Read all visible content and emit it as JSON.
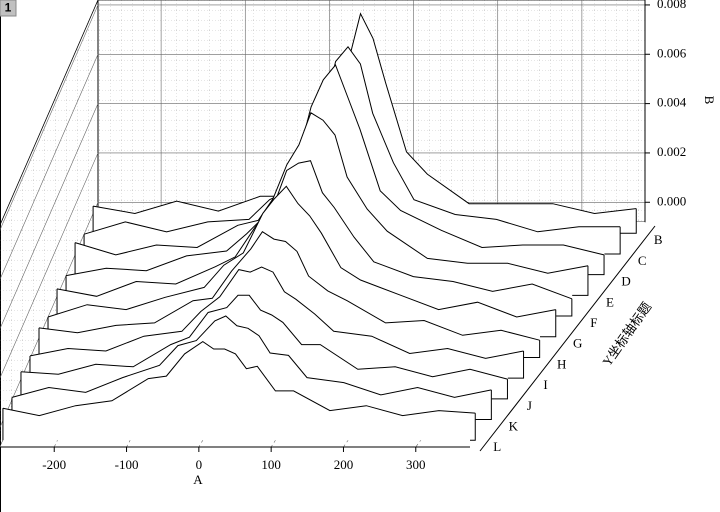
{
  "chart_data": {
    "type": "waterfall",
    "layer_label": "1",
    "xlabel": "A",
    "ylabel": "B",
    "zlabel": "Y坐标轴标题",
    "x": [
      -275,
      -225,
      -175,
      -125,
      -75,
      -50,
      -25,
      0,
      15,
      30,
      45,
      60,
      75,
      100,
      125,
      175,
      225,
      275,
      325,
      375
    ],
    "xlim": [
      -275,
      375
    ],
    "xticks": [
      -200,
      -100,
      0,
      100,
      200,
      300
    ],
    "ylim": [
      -0.0008,
      0.0082
    ],
    "yticks": [
      {
        "value": 0,
        "label": "0.000"
      },
      0.002,
      0.004,
      0.006,
      0.008
    ],
    "grid": true,
    "series": [
      {
        "name": "B",
        "color": "#000000",
        "values": [
          0.0003,
          0,
          0.0005,
          0.0001,
          0.0007,
          0.0007,
          0.0017,
          0.0026,
          0.0042,
          0.0061,
          0.0081,
          0.0071,
          0.0053,
          0.0025,
          0.0016,
          0.0004,
          0.0004,
          0.0004,
          0,
          0.0002
        ]
      },
      {
        "name": "C",
        "color": "#000000",
        "values": [
          0,
          0.0005,
          0.0001,
          0.0005,
          0.0006,
          0.0014,
          0.0018,
          0.0035,
          0.0049,
          0.007,
          0.0076,
          0.0069,
          0.0049,
          0.0029,
          0.0014,
          0.0008,
          0.0006,
          0.0001,
          0.0003,
          0.0003
        ]
      },
      {
        "name": "D",
        "color": "#000000",
        "values": [
          0.0005,
          0,
          0.0004,
          0.0003,
          0.0012,
          0.0014,
          0.0026,
          0.0041,
          0.006,
          0.0071,
          0.0077,
          0.0064,
          0.0051,
          0.0026,
          0.0018,
          0.001,
          0.0003,
          0.0004,
          0.0004,
          0
        ]
      },
      {
        "name": "E",
        "color": "#000000",
        "values": [
          0,
          0.0003,
          0.0002,
          0.0008,
          0.001,
          0.0017,
          0.0025,
          0.0045,
          0.0053,
          0.0066,
          0.0063,
          0.0057,
          0.004,
          0.0027,
          0.0018,
          0.0007,
          0.0005,
          0.0005,
          0.0001,
          0.0004
        ]
      },
      {
        "name": "F",
        "color": "#000000",
        "values": [
          0.0003,
          0,
          0.0006,
          0.0005,
          0.0012,
          0.0016,
          0.0028,
          0.0038,
          0.0051,
          0.0054,
          0.0055,
          0.0042,
          0.0036,
          0.0024,
          0.0014,
          0.0008,
          0.0006,
          0.0002,
          0.0005,
          -0.0001
        ]
      },
      {
        "name": "G",
        "color": "#000000",
        "values": [
          0,
          0.0005,
          0.0003,
          0.0008,
          0.0012,
          0.0021,
          0.0026,
          0.0042,
          0.0048,
          0.0053,
          0.0046,
          0.0041,
          0.0034,
          0.002,
          0.0015,
          0.0009,
          0.0003,
          0.0006,
          0,
          0.0003
        ]
      },
      {
        "name": "H",
        "color": "#000000",
        "values": [
          0.0004,
          0.0002,
          0.0005,
          0.0006,
          0.0015,
          0.0016,
          0.0027,
          0.0036,
          0.0043,
          0.004,
          0.0039,
          0.0035,
          0.0025,
          0.0019,
          0.0015,
          0.0006,
          0.0007,
          0.0001,
          0.0003,
          -0.0001
        ]
      },
      {
        "name": "I",
        "color": "#000000",
        "values": [
          0.0001,
          0.0004,
          0.0003,
          0.0009,
          0.0011,
          0.0019,
          0.0025,
          0.0036,
          0.0035,
          0.0037,
          0.0035,
          0.0027,
          0.0024,
          0.0018,
          0.0011,
          0.0009,
          0.0002,
          0.0004,
          0,
          0.0003
        ]
      },
      {
        "name": "J",
        "color": "#000000",
        "values": [
          0.0003,
          0.0002,
          0.0006,
          0.0005,
          0.0014,
          0.0017,
          0.0027,
          0.0029,
          0.0034,
          0.0034,
          0.0028,
          0.0026,
          0.0023,
          0.0014,
          0.0014,
          0.0004,
          0.0005,
          0.0001,
          0.0004,
          0
        ]
      },
      {
        "name": "K",
        "color": "#000000",
        "values": [
          0.0001,
          0.0005,
          0.0003,
          0.0009,
          0.0014,
          0.0022,
          0.0024,
          0.0032,
          0.0034,
          0.003,
          0.0029,
          0.0026,
          0.0019,
          0.0018,
          0.0009,
          0.0007,
          0.0002,
          0.0005,
          0.0001,
          0.0004
        ]
      },
      {
        "name": "L",
        "color": "#000000",
        "values": [
          0.0005,
          0.0002,
          0.0006,
          0.0008,
          0.0017,
          0.0018,
          0.0027,
          0.0032,
          0.0029,
          0.0029,
          0.0027,
          0.0021,
          0.0022,
          0.0012,
          0.0012,
          0.0004,
          0.0006,
          0.0002,
          0.0004,
          0.0003
        ]
      }
    ]
  }
}
